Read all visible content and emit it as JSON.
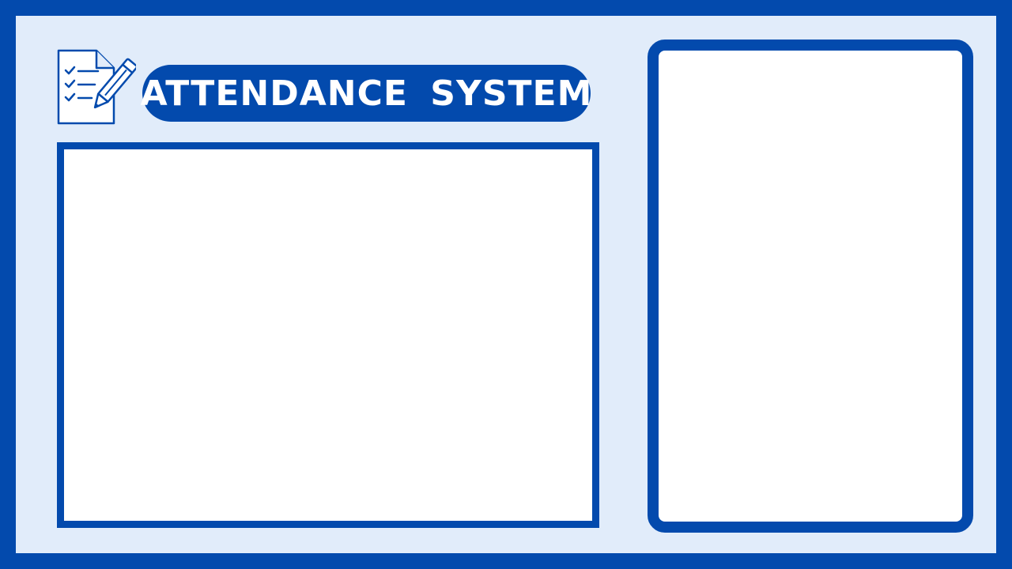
{
  "header": {
    "title": "ATTENDANCE SYSTEM",
    "logo_icon": "checklist-pen-icon"
  },
  "theme": {
    "primary": "#034AAD",
    "background": "#E1ECFA",
    "panel": "#FFFFFF"
  }
}
